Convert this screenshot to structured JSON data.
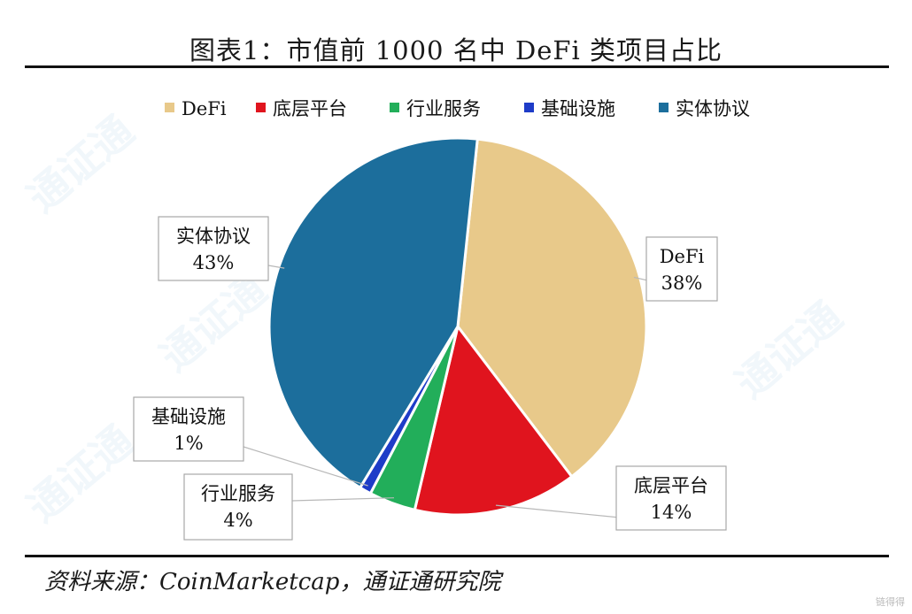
{
  "title": "图表1：市值前 1000 名中 DeFi 类项目占比",
  "source": "资料来源：CoinMarketcap，通证通研究院",
  "watermark": "通证通",
  "corner_logo": "链得得",
  "chart_data": {
    "type": "pie",
    "title": "图表1：市值前 1000 名中 DeFi 类项目占比",
    "legend_position": "top",
    "slices": [
      {
        "label": "DeFi",
        "value": 38,
        "display": "38%",
        "color": "#E8C98A"
      },
      {
        "label": "底层平台",
        "value": 14,
        "display": "14%",
        "color": "#E0141E"
      },
      {
        "label": "行业服务",
        "value": 4,
        "display": "4%",
        "color": "#22AE5A"
      },
      {
        "label": "基础设施",
        "value": 1,
        "display": "1%",
        "color": "#1E3CC8"
      },
      {
        "label": "实体协议",
        "value": 43,
        "display": "43%",
        "color": "#1C6E9C"
      }
    ]
  }
}
